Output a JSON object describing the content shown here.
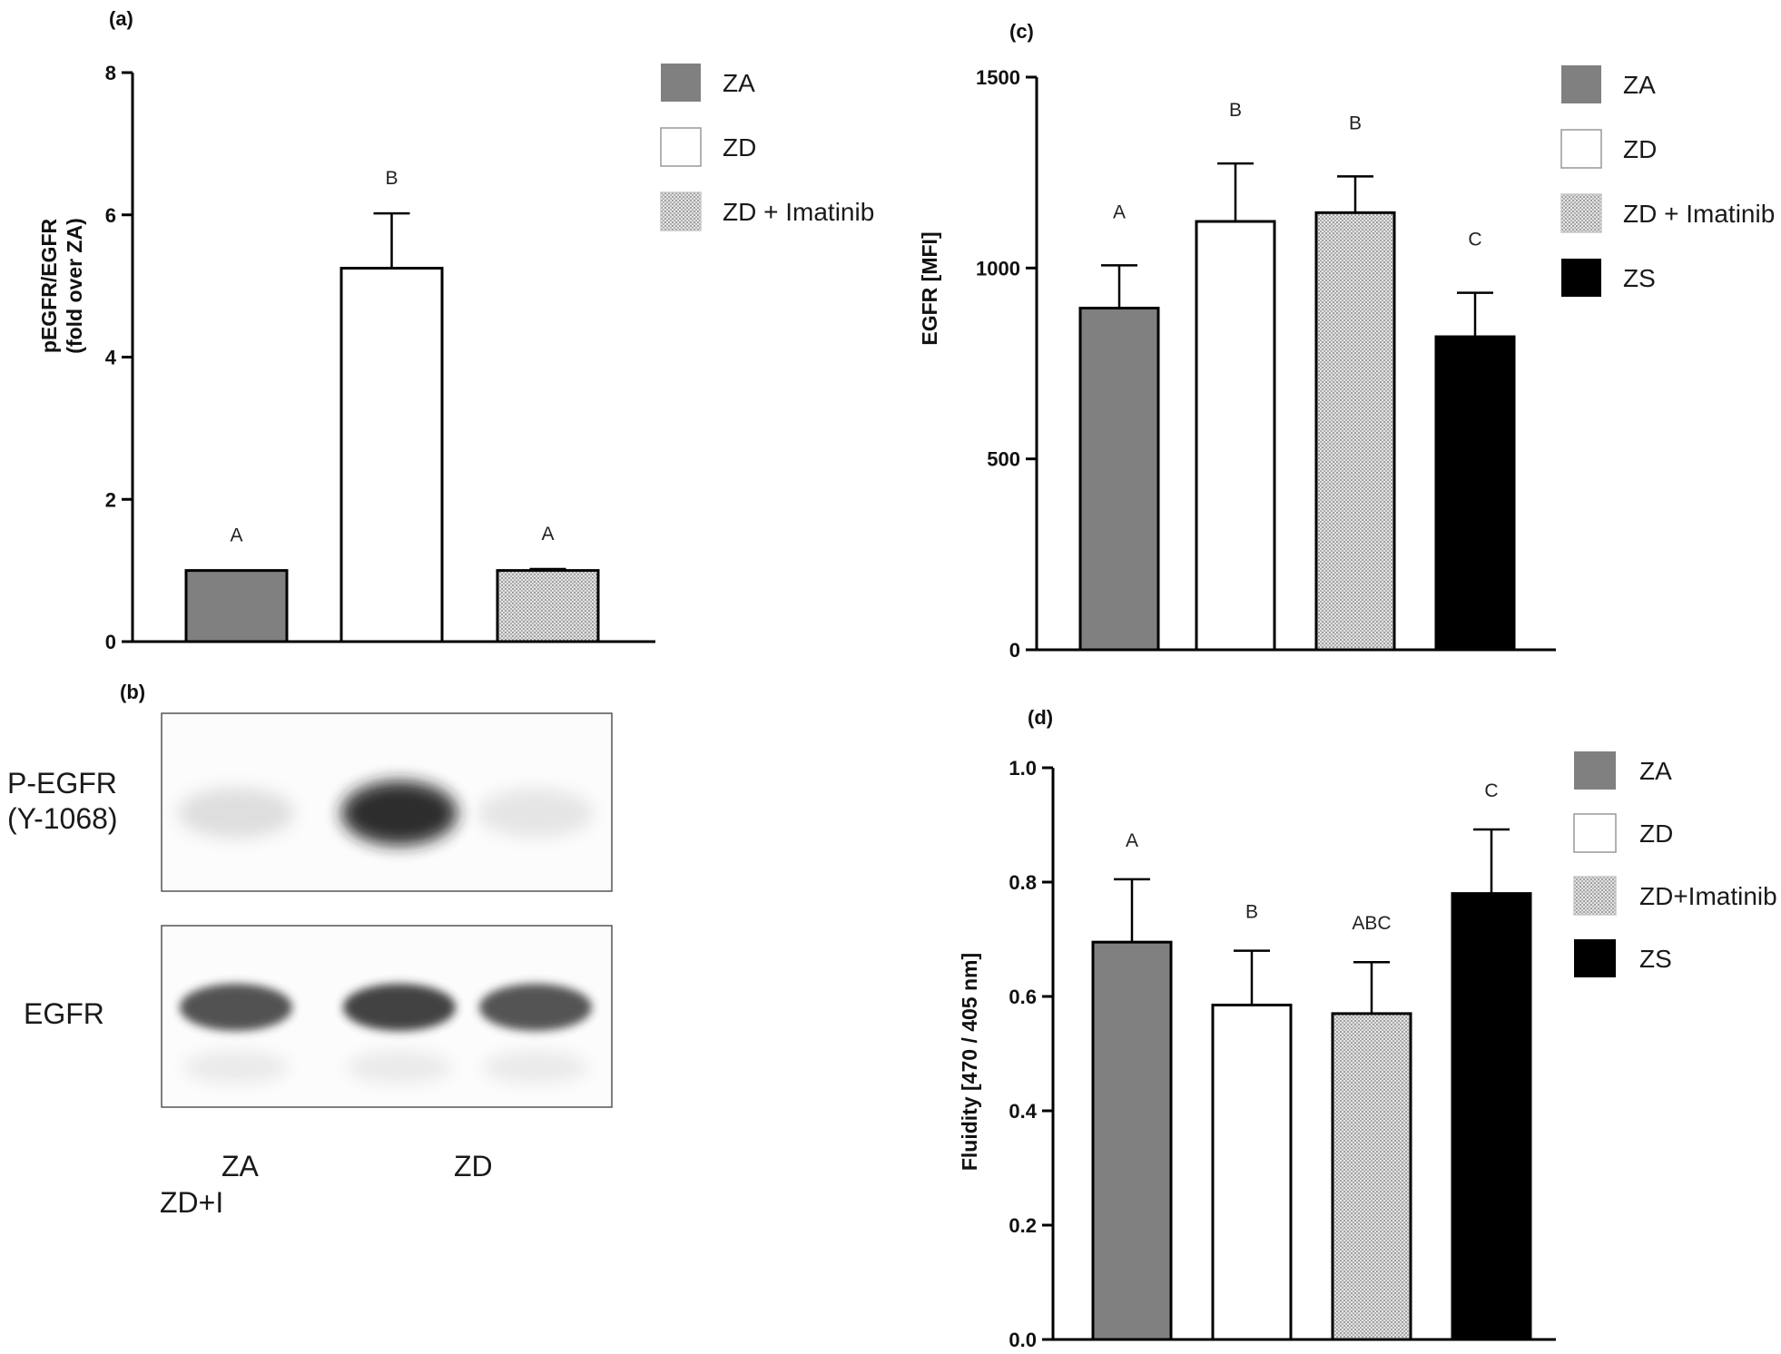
{
  "colors": {
    "ZA": "#808080",
    "ZD": "#ffffff",
    "imatinib": "dotted-pattern",
    "ZS": "#000000",
    "axis": "#000000"
  },
  "chart_data": [
    {
      "panel": "(a)",
      "type": "bar",
      "ylabel_lines": [
        "pEGFR/EGFR",
        "(fold over ZA)"
      ],
      "categories": [
        "ZA",
        "ZD",
        "ZD + Imatinib"
      ],
      "values": [
        1.0,
        5.25,
        1.0
      ],
      "errors": [
        0,
        0.77,
        0.02
      ],
      "significance": [
        "A",
        "B",
        "A"
      ],
      "ylim": [
        0,
        8
      ],
      "yticks": [
        0,
        2,
        4,
        6,
        8
      ],
      "legend": [
        "ZA",
        "ZD",
        "ZD + Imatinib"
      ],
      "legend_position": "top-right"
    },
    {
      "panel": "(c)",
      "type": "bar",
      "ylabel_lines": [
        "EGFR [MFI]"
      ],
      "categories": [
        "ZA",
        "ZD",
        "ZD + Imatinib",
        "ZS"
      ],
      "values": [
        895,
        1122,
        1145,
        820
      ],
      "errors": [
        112,
        152,
        95,
        115
      ],
      "significance": [
        "A",
        "B",
        "B",
        "C"
      ],
      "ylim": [
        0,
        1500
      ],
      "yticks": [
        0,
        500,
        1000,
        1500
      ],
      "legend": [
        "ZA",
        "ZD",
        "ZD + Imatinib",
        "ZS"
      ],
      "legend_position": "top-right"
    },
    {
      "panel": "(d)",
      "type": "bar",
      "ylabel_lines": [
        "Fluidity [470 / 405 nm]"
      ],
      "categories": [
        "ZA",
        "ZD",
        "ZD+Imatinib",
        "ZS"
      ],
      "values": [
        0.695,
        0.585,
        0.57,
        0.78
      ],
      "errors": [
        0.11,
        0.095,
        0.09,
        0.112
      ],
      "significance": [
        "A",
        "B",
        "ABC",
        "C"
      ],
      "ylim": [
        0,
        1.0
      ],
      "yticks": [
        "0.0",
        "0.2",
        "0.4",
        "0.6",
        "0.8",
        "1.0"
      ],
      "legend": [
        "ZA",
        "ZD",
        "ZD+Imatinib",
        "ZS"
      ],
      "legend_position": "right"
    }
  ],
  "blot": {
    "panel": "(b)",
    "row_labels": [
      "P-EGFR",
      "(Y-1068)",
      "EGFR"
    ],
    "lane_labels": [
      "ZA",
      "ZD",
      "ZD+I"
    ],
    "pegfr_intensity": [
      0.18,
      0.95,
      0.12
    ],
    "egfr_intensity": [
      0.8,
      0.9,
      0.78
    ]
  }
}
